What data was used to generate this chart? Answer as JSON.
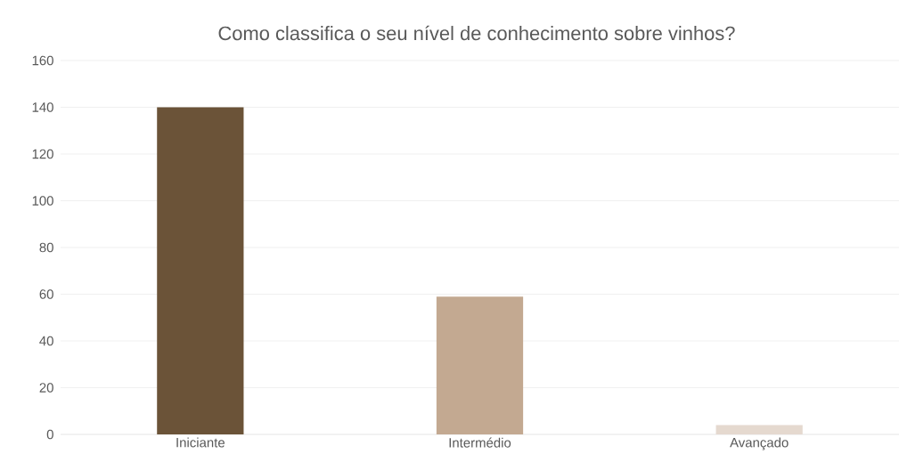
{
  "chart_data": {
    "type": "bar",
    "title": "Como classifica o seu nível de conhecimento sobre vinhos?",
    "categories": [
      "Iniciante",
      "Intermédio",
      "Avançado"
    ],
    "values": [
      140,
      59,
      4
    ],
    "colors": [
      "#6b5338",
      "#c3a991",
      "#e5d9cf"
    ],
    "ylim": [
      0,
      160
    ],
    "yticks": [
      0,
      20,
      40,
      60,
      80,
      100,
      120,
      140,
      160
    ],
    "grid": "y"
  }
}
